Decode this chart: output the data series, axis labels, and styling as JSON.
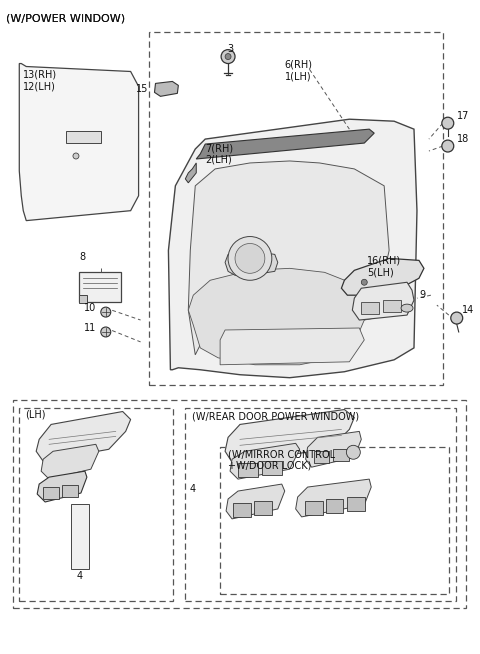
{
  "bg_color": "#ffffff",
  "lc": "#333333",
  "figsize": [
    4.8,
    6.54
  ],
  "dpi": 100,
  "title": "(W/POWER WINDOW)",
  "labels": {
    "part13_12": "13(RH)\n12(LH)",
    "part3": "3",
    "part6_1": "6(RH)\n1(LH)",
    "part17": "17",
    "part18": "18",
    "part7_2": "7(RH)\n2(LH)",
    "part8": "8",
    "part10": "10",
    "part11": "11",
    "part16_5": "16(RH)\n5(LH)",
    "part9": "9",
    "part14": "14",
    "part15": "15",
    "lh_label": "(LH)",
    "part4_lh": "4",
    "part4_rear": "4",
    "rear_window_label": "(W/REAR DOOR POWER WINDOW)",
    "mirror_label": "(W/MIRROR CONTROL\n+W/DOOR LOCK)"
  }
}
